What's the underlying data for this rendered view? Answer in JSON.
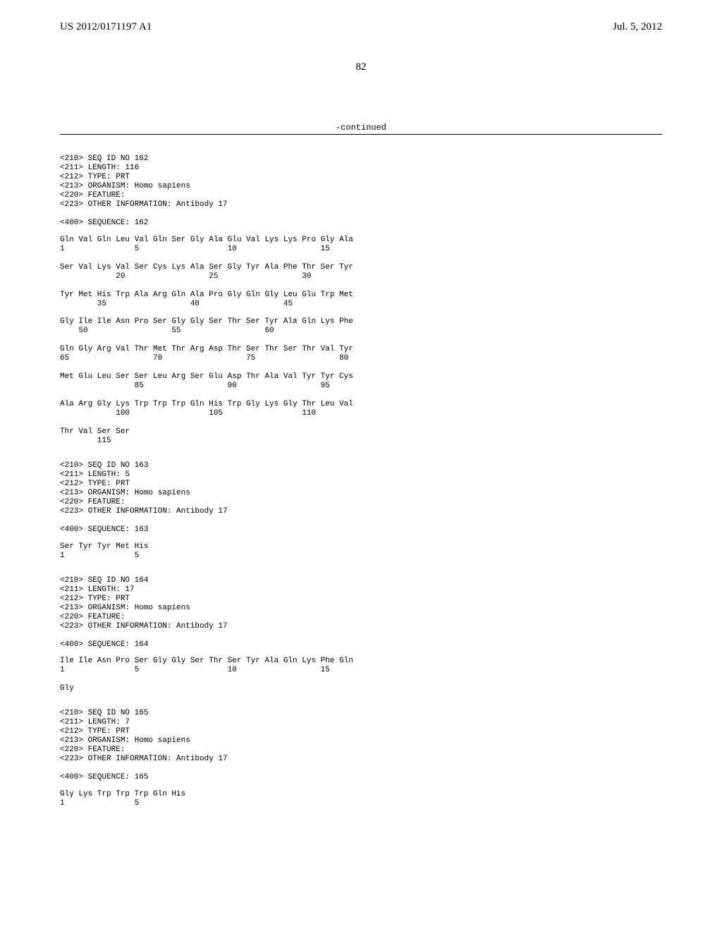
{
  "header": {
    "pub_number": "US 2012/0171197 A1",
    "pub_date": "Jul. 5, 2012"
  },
  "page_number": "82",
  "continued_label": "-continued",
  "entries": [
    {
      "meta": [
        "<210> SEQ ID NO 162",
        "<211> LENGTH: 116",
        "<212> TYPE: PRT",
        "<213> ORGANISM: Homo sapiens",
        "<220> FEATURE:",
        "<223> OTHER INFORMATION: Antibody 17",
        "",
        "<400> SEQUENCE: 162"
      ],
      "seq": [
        "Gln Val Gln Leu Val Gln Ser Gly Ala Glu Val Lys Lys Pro Gly Ala",
        "1               5                   10                  15",
        "",
        "Ser Val Lys Val Ser Cys Lys Ala Ser Gly Tyr Ala Phe Thr Ser Tyr",
        "            20                  25                  30",
        "",
        "Tyr Met His Trp Ala Arg Gln Ala Pro Gly Gln Gly Leu Glu Trp Met",
        "        35                  40                  45",
        "",
        "Gly Ile Ile Asn Pro Ser Gly Gly Ser Thr Ser Tyr Ala Gln Lys Phe",
        "    50                  55                  60",
        "",
        "Gln Gly Arg Val Thr Met Thr Arg Asp Thr Ser Thr Ser Thr Val Tyr",
        "65                  70                  75                  80",
        "",
        "Met Glu Leu Ser Ser Leu Arg Ser Glu Asp Thr Ala Val Tyr Tyr Cys",
        "                85                  90                  95",
        "",
        "Ala Arg Gly Lys Trp Trp Trp Gln His Trp Gly Lys Gly Thr Leu Val",
        "            100                 105                 110",
        "",
        "Thr Val Ser Ser",
        "        115"
      ]
    },
    {
      "meta": [
        "<210> SEQ ID NO 163",
        "<211> LENGTH: 5",
        "<212> TYPE: PRT",
        "<213> ORGANISM: Homo sapiens",
        "<220> FEATURE:",
        "<223> OTHER INFORMATION: Antibody 17",
        "",
        "<400> SEQUENCE: 163"
      ],
      "seq": [
        "Ser Tyr Tyr Met His",
        "1               5"
      ]
    },
    {
      "meta": [
        "<210> SEQ ID NO 164",
        "<211> LENGTH: 17",
        "<212> TYPE: PRT",
        "<213> ORGANISM: Homo sapiens",
        "<220> FEATURE:",
        "<223> OTHER INFORMATION: Antibody 17",
        "",
        "<400> SEQUENCE: 164"
      ],
      "seq": [
        "Ile Ile Asn Pro Ser Gly Gly Ser Thr Ser Tyr Ala Gln Lys Phe Gln",
        "1               5                   10                  15",
        "",
        "Gly"
      ]
    },
    {
      "meta": [
        "<210> SEQ ID NO 165",
        "<211> LENGTH: 7",
        "<212> TYPE: PRT",
        "<213> ORGANISM: Homo sapiens",
        "<220> FEATURE:",
        "<223> OTHER INFORMATION: Antibody 17",
        "",
        "<400> SEQUENCE: 165"
      ],
      "seq": [
        "Gly Lys Trp Trp Trp Gln His",
        "1               5"
      ]
    }
  ]
}
